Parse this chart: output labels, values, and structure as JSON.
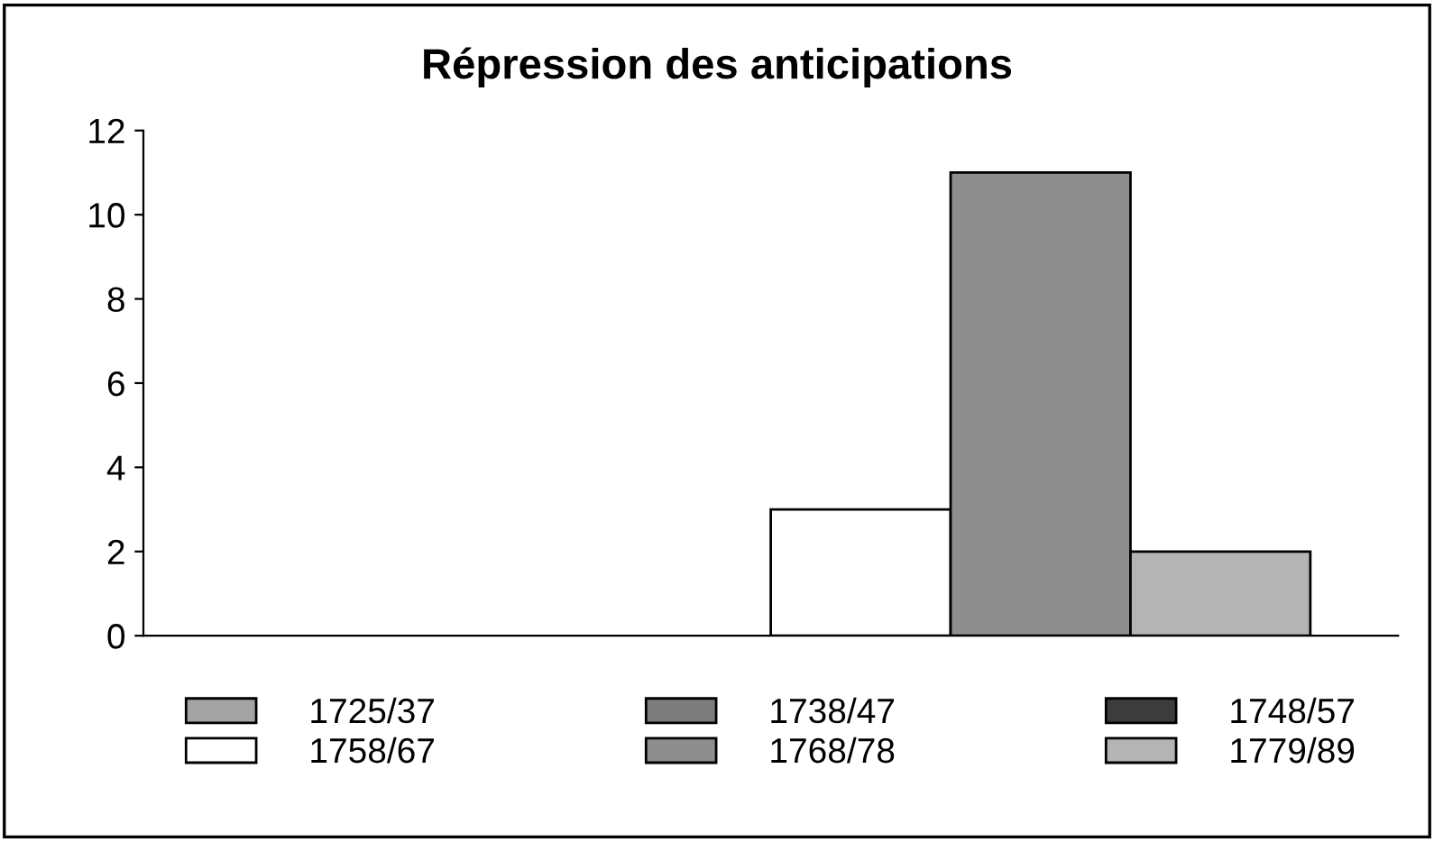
{
  "chart_data": {
    "type": "bar",
    "title": "Répression des anticipations",
    "categories": [
      null
    ],
    "series": [
      {
        "name": "1725/37",
        "color": "#a4a4a4",
        "values": [
          0
        ]
      },
      {
        "name": "1738/47",
        "color": "#7c7c7c",
        "values": [
          0
        ]
      },
      {
        "name": "1748/57",
        "color": "#3c3c3c",
        "values": [
          0
        ]
      },
      {
        "name": "1758/67",
        "color": "#ffffff",
        "values": [
          3
        ]
      },
      {
        "name": "1768/78",
        "color": "#8e8e8e",
        "values": [
          11
        ]
      },
      {
        "name": "1779/89",
        "color": "#b4b4b4",
        "values": [
          2
        ]
      }
    ],
    "ylim": [
      0,
      12
    ],
    "yticks": [
      0,
      2,
      4,
      6,
      8,
      10,
      12
    ],
    "grid": false,
    "legend": "bottom"
  }
}
